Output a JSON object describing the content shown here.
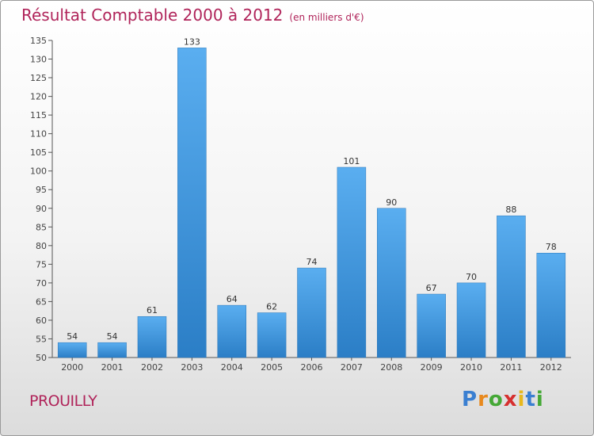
{
  "title": "Résultat Comptable 2000 à 2012",
  "subtitle": "(en milliers d'€)",
  "town": "PROUILLY",
  "logo": {
    "letters": [
      "P",
      "r",
      "o",
      "x",
      "i",
      "t",
      "i"
    ],
    "colors": [
      "#3a7fd1",
      "#e8891d",
      "#45a836",
      "#d6302f",
      "#e8b81d",
      "#3a7fd1",
      "#45a836"
    ]
  },
  "colors": {
    "bar_top": "#5aaef0",
    "bar_bottom": "#2b7ec6",
    "title": "#b0245a"
  },
  "chart_data": {
    "type": "bar",
    "title": "Résultat Comptable 2000 à 2012",
    "xlabel": "",
    "ylabel": "",
    "categories": [
      "2000",
      "2001",
      "2002",
      "2003",
      "2004",
      "2005",
      "2006",
      "2007",
      "2008",
      "2009",
      "2010",
      "2011",
      "2012"
    ],
    "values": [
      54,
      54,
      61,
      133,
      64,
      62,
      74,
      101,
      90,
      67,
      70,
      88,
      78
    ],
    "ylim": [
      50,
      135
    ],
    "yticks": [
      50,
      55,
      60,
      65,
      70,
      75,
      80,
      85,
      90,
      95,
      100,
      105,
      110,
      115,
      120,
      125,
      130,
      135
    ],
    "grid": false,
    "legend": "none"
  }
}
